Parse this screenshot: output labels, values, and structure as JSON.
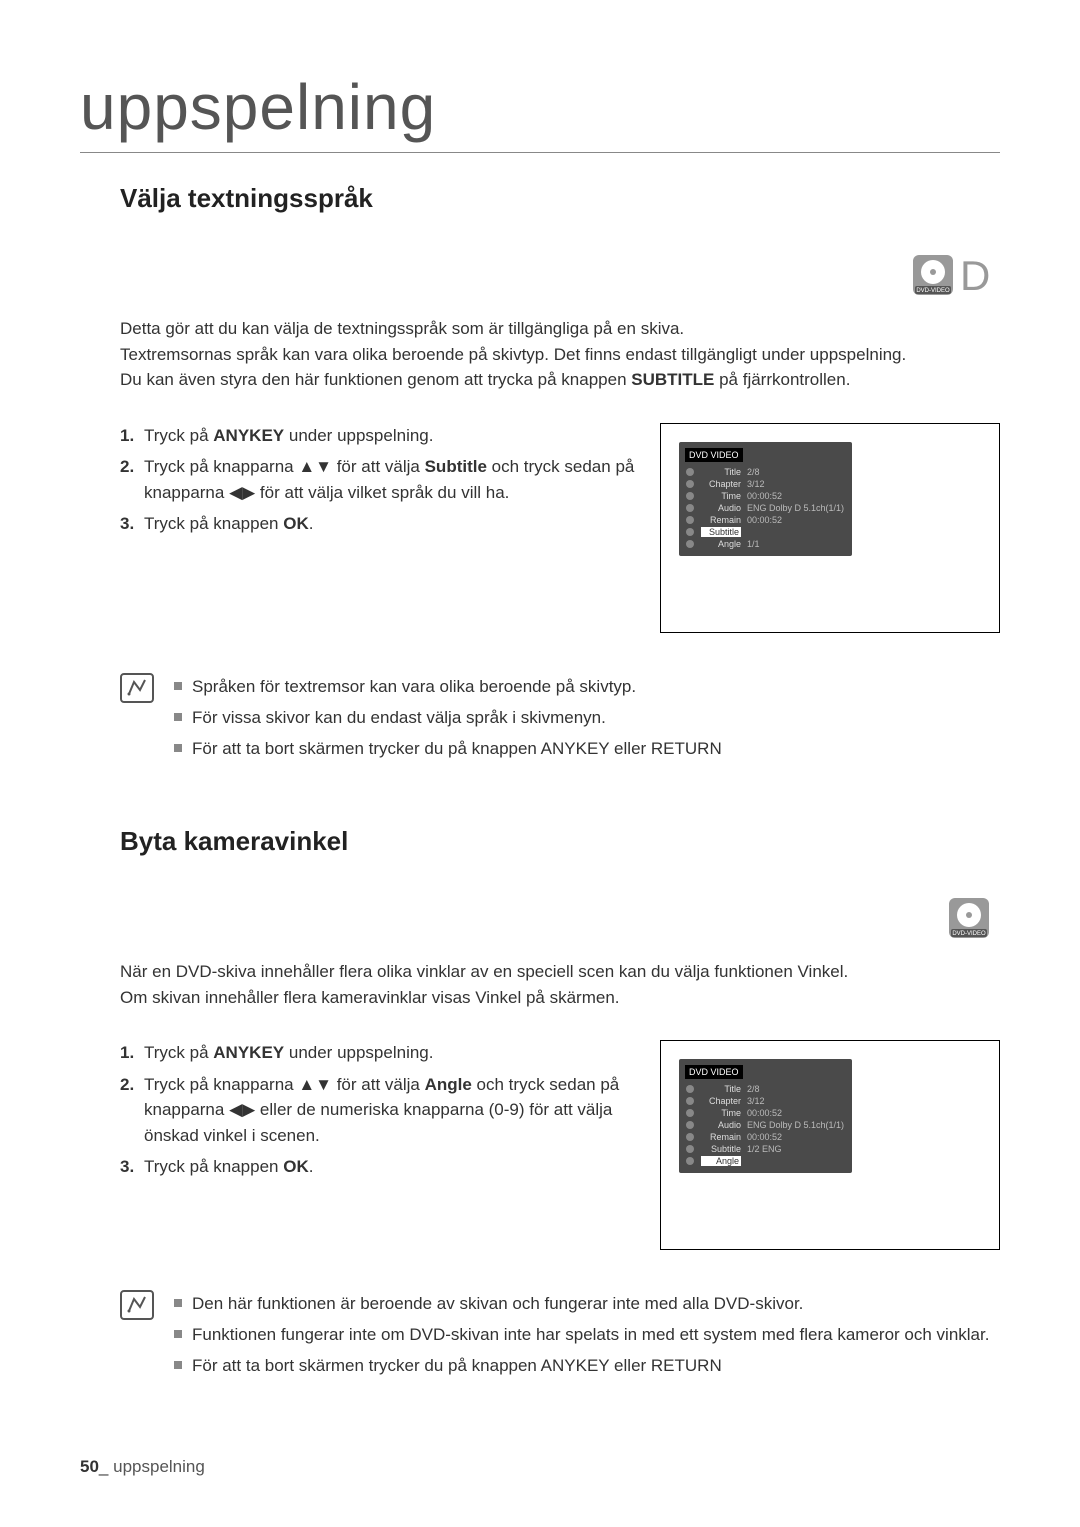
{
  "page": {
    "title": "uppspelning",
    "footer_num": "50",
    "footer_sep": "_",
    "footer_text": "uppspelning"
  },
  "section1": {
    "heading": "Välja textningsspråk",
    "intro_lines": [
      "Detta gör att du kan välja de textningsspråk som är tillgängliga på en skiva.",
      "Textremsornas språk kan vara olika beroende på skivtyp. Det finns endast tillgängligt under uppspelning.",
      "Du kan även styra den här funktionen genom att trycka på knappen SUBTITLE på fjärrkontrollen."
    ],
    "intro_bold": "SUBTITLE",
    "steps": [
      {
        "n": "1.",
        "pre": "Tryck på ",
        "bold": "ANYKEY",
        "post": " under uppspelning."
      },
      {
        "n": "2.",
        "pre": "Tryck på knapparna ▲▼ för att välja ",
        "bold": "Subtitle",
        "post": " och tryck sedan på knapparna ◀▶ för att välja vilket språk du vill ha."
      },
      {
        "n": "3.",
        "pre": "Tryck på knappen ",
        "bold": "OK",
        "post": "."
      }
    ],
    "osd": {
      "header": "DVD VIDEO",
      "rows": [
        {
          "label": "Title",
          "val": "2/8",
          "hl": false
        },
        {
          "label": "Chapter",
          "val": "3/12",
          "hl": false
        },
        {
          "label": "Time",
          "val": "00:00:52",
          "hl": false
        },
        {
          "label": "Audio",
          "val": "ENG Dolby D 5.1ch(1/1)",
          "hl": false
        },
        {
          "label": "Remain",
          "val": "00:00:52",
          "hl": false
        },
        {
          "label": "Subtitle",
          "val": "",
          "hl": true
        },
        {
          "label": "Angle",
          "val": "1/1",
          "hl": false
        }
      ]
    },
    "notes": [
      "Språken för textremsor kan vara olika beroende på skivtyp.",
      "För vissa skivor kan du endast välja språk i skivmenyn.",
      "För att ta bort skärmen trycker du på knappen ANYKEY eller RETURN"
    ]
  },
  "section2": {
    "heading": "Byta kameravinkel",
    "intro_lines": [
      "När en DVD-skiva innehåller flera olika vinklar av en speciell scen kan du välja funktionen Vinkel.",
      "Om skivan innehåller flera kameravinklar visas Vinkel på skärmen."
    ],
    "steps": [
      {
        "n": "1.",
        "pre": "Tryck på ",
        "bold": "ANYKEY",
        "post": " under uppspelning."
      },
      {
        "n": "2.",
        "pre": "Tryck på knapparna ▲▼ för att välja ",
        "bold": "Angle",
        "post": " och tryck sedan på knapparna ◀▶ eller de numeriska knapparna (0-9) för att välja önskad vinkel i scenen."
      },
      {
        "n": "3.",
        "pre": "Tryck på knappen ",
        "bold": "OK",
        "post": "."
      }
    ],
    "osd": {
      "header": "DVD VIDEO",
      "rows": [
        {
          "label": "Title",
          "val": "2/8",
          "hl": false
        },
        {
          "label": "Chapter",
          "val": "3/12",
          "hl": false
        },
        {
          "label": "Time",
          "val": "00:00:52",
          "hl": false
        },
        {
          "label": "Audio",
          "val": "ENG Dolby D 5.1ch(1/1)",
          "hl": false
        },
        {
          "label": "Remain",
          "val": "00:00:52",
          "hl": false
        },
        {
          "label": "Subtitle",
          "val": "1/2 ENG",
          "hl": false
        },
        {
          "label": "Angle",
          "val": "",
          "hl": true
        }
      ]
    },
    "notes": [
      "Den här funktionen är beroende av skivan och fungerar inte med alla DVD-skivor.",
      "Funktionen fungerar inte om DVD-skivan inte har spelats in med ett system med flera kameror och vinklar.",
      "För att ta bort skärmen trycker du på knappen ANYKEY eller RETURN"
    ]
  },
  "colors": {
    "title": "#555555",
    "heading": "#222222",
    "body": "#333333",
    "rule": "#888888",
    "osd_bg": "#4a4a4a",
    "osd_header_bg": "#000000",
    "bullet": "#888888"
  },
  "typography": {
    "title_size": 64,
    "heading_size": 26,
    "body_size": 17,
    "osd_size": 9
  }
}
